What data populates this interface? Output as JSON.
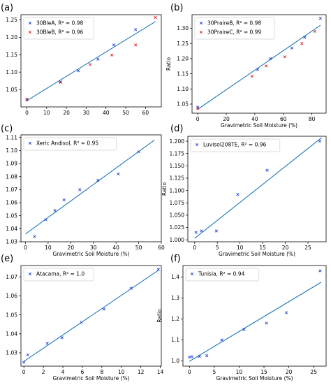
{
  "chart_data": [
    {
      "type": "scatter",
      "panel_label": "(a)",
      "xlabel": "",
      "ylabel": "",
      "xlim": [
        -3,
        68
      ],
      "ylim": [
        1.0,
        1.265
      ],
      "xticks": [
        0,
        10,
        20,
        30,
        40,
        50,
        60
      ],
      "yticks": [
        1.05,
        1.1,
        1.15,
        1.2,
        1.25
      ],
      "ytick_labels": [
        "1.05",
        "1.10",
        "1.15",
        "1.20",
        "1.25"
      ],
      "legend_loc": "upper-left",
      "fit_line": {
        "x": [
          0,
          65
        ],
        "y": [
          1.018,
          1.245
        ]
      },
      "series": [
        {
          "name": "30BleA, R² = 0.98",
          "marker": "x",
          "color": "#1f3fd6",
          "x": [
            0,
            17,
            26,
            36,
            44,
            55
          ],
          "y": [
            1.02,
            1.072,
            1.104,
            1.137,
            1.178,
            1.222
          ]
        },
        {
          "name": "30BleB, R² = 0.96",
          "marker": "x",
          "color": "#e02020",
          "x": [
            0,
            17,
            32,
            43,
            55,
            65
          ],
          "y": [
            1.022,
            1.07,
            1.122,
            1.149,
            1.178,
            1.257
          ]
        }
      ]
    },
    {
      "type": "scatter",
      "panel_label": "(b)",
      "xlabel": "Gravimetric Soil Moisture (%)",
      "ylabel": "Ratio",
      "xlim": [
        -4,
        90
      ],
      "ylim": [
        1.02,
        1.345
      ],
      "xticks": [
        0,
        20,
        40,
        60,
        80
      ],
      "yticks": [
        1.05,
        1.1,
        1.15,
        1.2,
        1.25,
        1.3
      ],
      "ytick_labels": [
        "1.05",
        "1.10",
        "1.15",
        "1.20",
        "1.25",
        "1.30"
      ],
      "legend_loc": "upper-left",
      "fit_line": {
        "x": [
          0,
          86
        ],
        "y": [
          1.033,
          1.31
        ]
      },
      "series": [
        {
          "name": "30PraireB, R² = 0.98",
          "marker": "x",
          "color": "#1f3fd6",
          "x": [
            0,
            42,
            51,
            66,
            75,
            86
          ],
          "y": [
            1.04,
            1.164,
            1.2,
            1.235,
            1.27,
            1.333
          ]
        },
        {
          "name": "30PraireC, R² = 0.99",
          "marker": "x",
          "color": "#e02020",
          "x": [
            0,
            38,
            48,
            61,
            73,
            82
          ],
          "y": [
            1.035,
            1.142,
            1.176,
            1.206,
            1.25,
            1.29
          ]
        }
      ]
    },
    {
      "type": "scatter",
      "panel_label": "(c)",
      "xlabel": "Gravimetric Soil Moisture (%)",
      "ylabel": "Ratio",
      "xlim": [
        -2,
        60
      ],
      "ylim": [
        1.03,
        1.112
      ],
      "xticks": [
        0,
        10,
        20,
        30,
        40,
        50,
        60
      ],
      "yticks": [
        1.03,
        1.04,
        1.05,
        1.06,
        1.07,
        1.08,
        1.09,
        1.1,
        1.11
      ],
      "ytick_labels": [
        "1.03",
        "1.04",
        "1.05",
        "1.06",
        "1.07",
        "1.08",
        "1.09",
        "1.10",
        "1.11"
      ],
      "legend_loc": "upper-left",
      "fit_line": {
        "x": [
          0,
          57
        ],
        "y": [
          1.036,
          1.108
        ]
      },
      "series": [
        {
          "name": "Xeric Andisol, R² = 0.95",
          "marker": "x",
          "color": "#1f3fd6",
          "x": [
            4,
            9,
            13,
            17,
            24,
            32,
            41,
            50
          ],
          "y": [
            1.034,
            1.047,
            1.054,
            1.062,
            1.07,
            1.077,
            1.082,
            1.099
          ]
        }
      ]
    },
    {
      "type": "scatter",
      "panel_label": "(d)",
      "xlabel": "Gravimetric Soil Moisture (%)",
      "ylabel": "Ratio",
      "xlim": [
        -1.5,
        29
      ],
      "ylim": [
        0.996,
        1.21
      ],
      "xticks": [
        0,
        5,
        10,
        15,
        20,
        25
      ],
      "yticks": [
        1.0,
        1.025,
        1.05,
        1.075,
        1.1,
        1.125,
        1.15,
        1.175,
        1.2
      ],
      "ytick_labels": [
        "1.000",
        "1.025",
        "1.050",
        "1.075",
        "1.100",
        "1.125",
        "1.150",
        "1.175",
        "1.200"
      ],
      "legend_loc": "upper-left",
      "fit_line": {
        "x": [
          0,
          28
        ],
        "y": [
          1.003,
          1.207
        ]
      },
      "series": [
        {
          "name": "Luvisol208TE, R² = 0.96",
          "marker": "x",
          "color": "#1f3fd6",
          "x": [
            0.3,
            1.5,
            4.8,
            9.5,
            16,
            27.6
          ],
          "y": [
            1.015,
            1.018,
            1.018,
            1.092,
            1.141,
            1.2
          ]
        }
      ]
    },
    {
      "type": "scatter",
      "panel_label": "(e)",
      "xlabel": "Gravimetric Soil Moisture (%)",
      "ylabel": "Ratio",
      "xlim": [
        -0.3,
        14.1
      ],
      "ylim": [
        1.023,
        1.076
      ],
      "xticks": [
        0,
        2,
        4,
        6,
        8,
        10,
        12,
        14
      ],
      "yticks": [
        1.03,
        1.04,
        1.05,
        1.06,
        1.07
      ],
      "ytick_labels": [
        "1.03",
        "1.04",
        "1.05",
        "1.06",
        "1.07"
      ],
      "legend_loc": "upper-left",
      "fit_line": {
        "x": [
          0,
          13.8
        ],
        "y": [
          1.0255,
          1.0735
        ]
      },
      "series": [
        {
          "name": "Atacama, R² = 1.0",
          "marker": "x",
          "color": "#1f3fd6",
          "x": [
            0,
            0.4,
            2.4,
            3.9,
            5.9,
            8.2,
            11,
            13.8
          ],
          "y": [
            1.025,
            1.029,
            1.035,
            1.038,
            1.046,
            1.053,
            1.064,
            1.074
          ]
        }
      ]
    },
    {
      "type": "scatter",
      "panel_label": "(f)",
      "xlabel": "Gravimetric Soil Moisture (%)",
      "ylabel": "Ratio",
      "xlim": [
        -1.3,
        27.5
      ],
      "ylim": [
        0.975,
        1.455
      ],
      "xticks": [
        0,
        5,
        10,
        15,
        20,
        25
      ],
      "yticks": [
        1.0,
        1.1,
        1.2,
        1.3,
        1.4
      ],
      "ytick_labels": [
        "1.0",
        "1.1",
        "1.2",
        "1.3",
        "1.4"
      ],
      "legend_loc": "upper-left",
      "fit_line": {
        "x": [
          0,
          26.5
        ],
        "y": [
          0.998,
          1.375
        ]
      },
      "series": [
        {
          "name": "Tunisia, R² = 0.94",
          "marker": "x",
          "color": "#1f3fd6",
          "x": [
            0,
            0.5,
            2,
            3.5,
            6.5,
            11,
            15.5,
            19.5,
            26.3
          ],
          "y": [
            1.018,
            1.02,
            1.021,
            1.025,
            1.1,
            1.15,
            1.18,
            1.23,
            1.43
          ]
        }
      ]
    }
  ]
}
